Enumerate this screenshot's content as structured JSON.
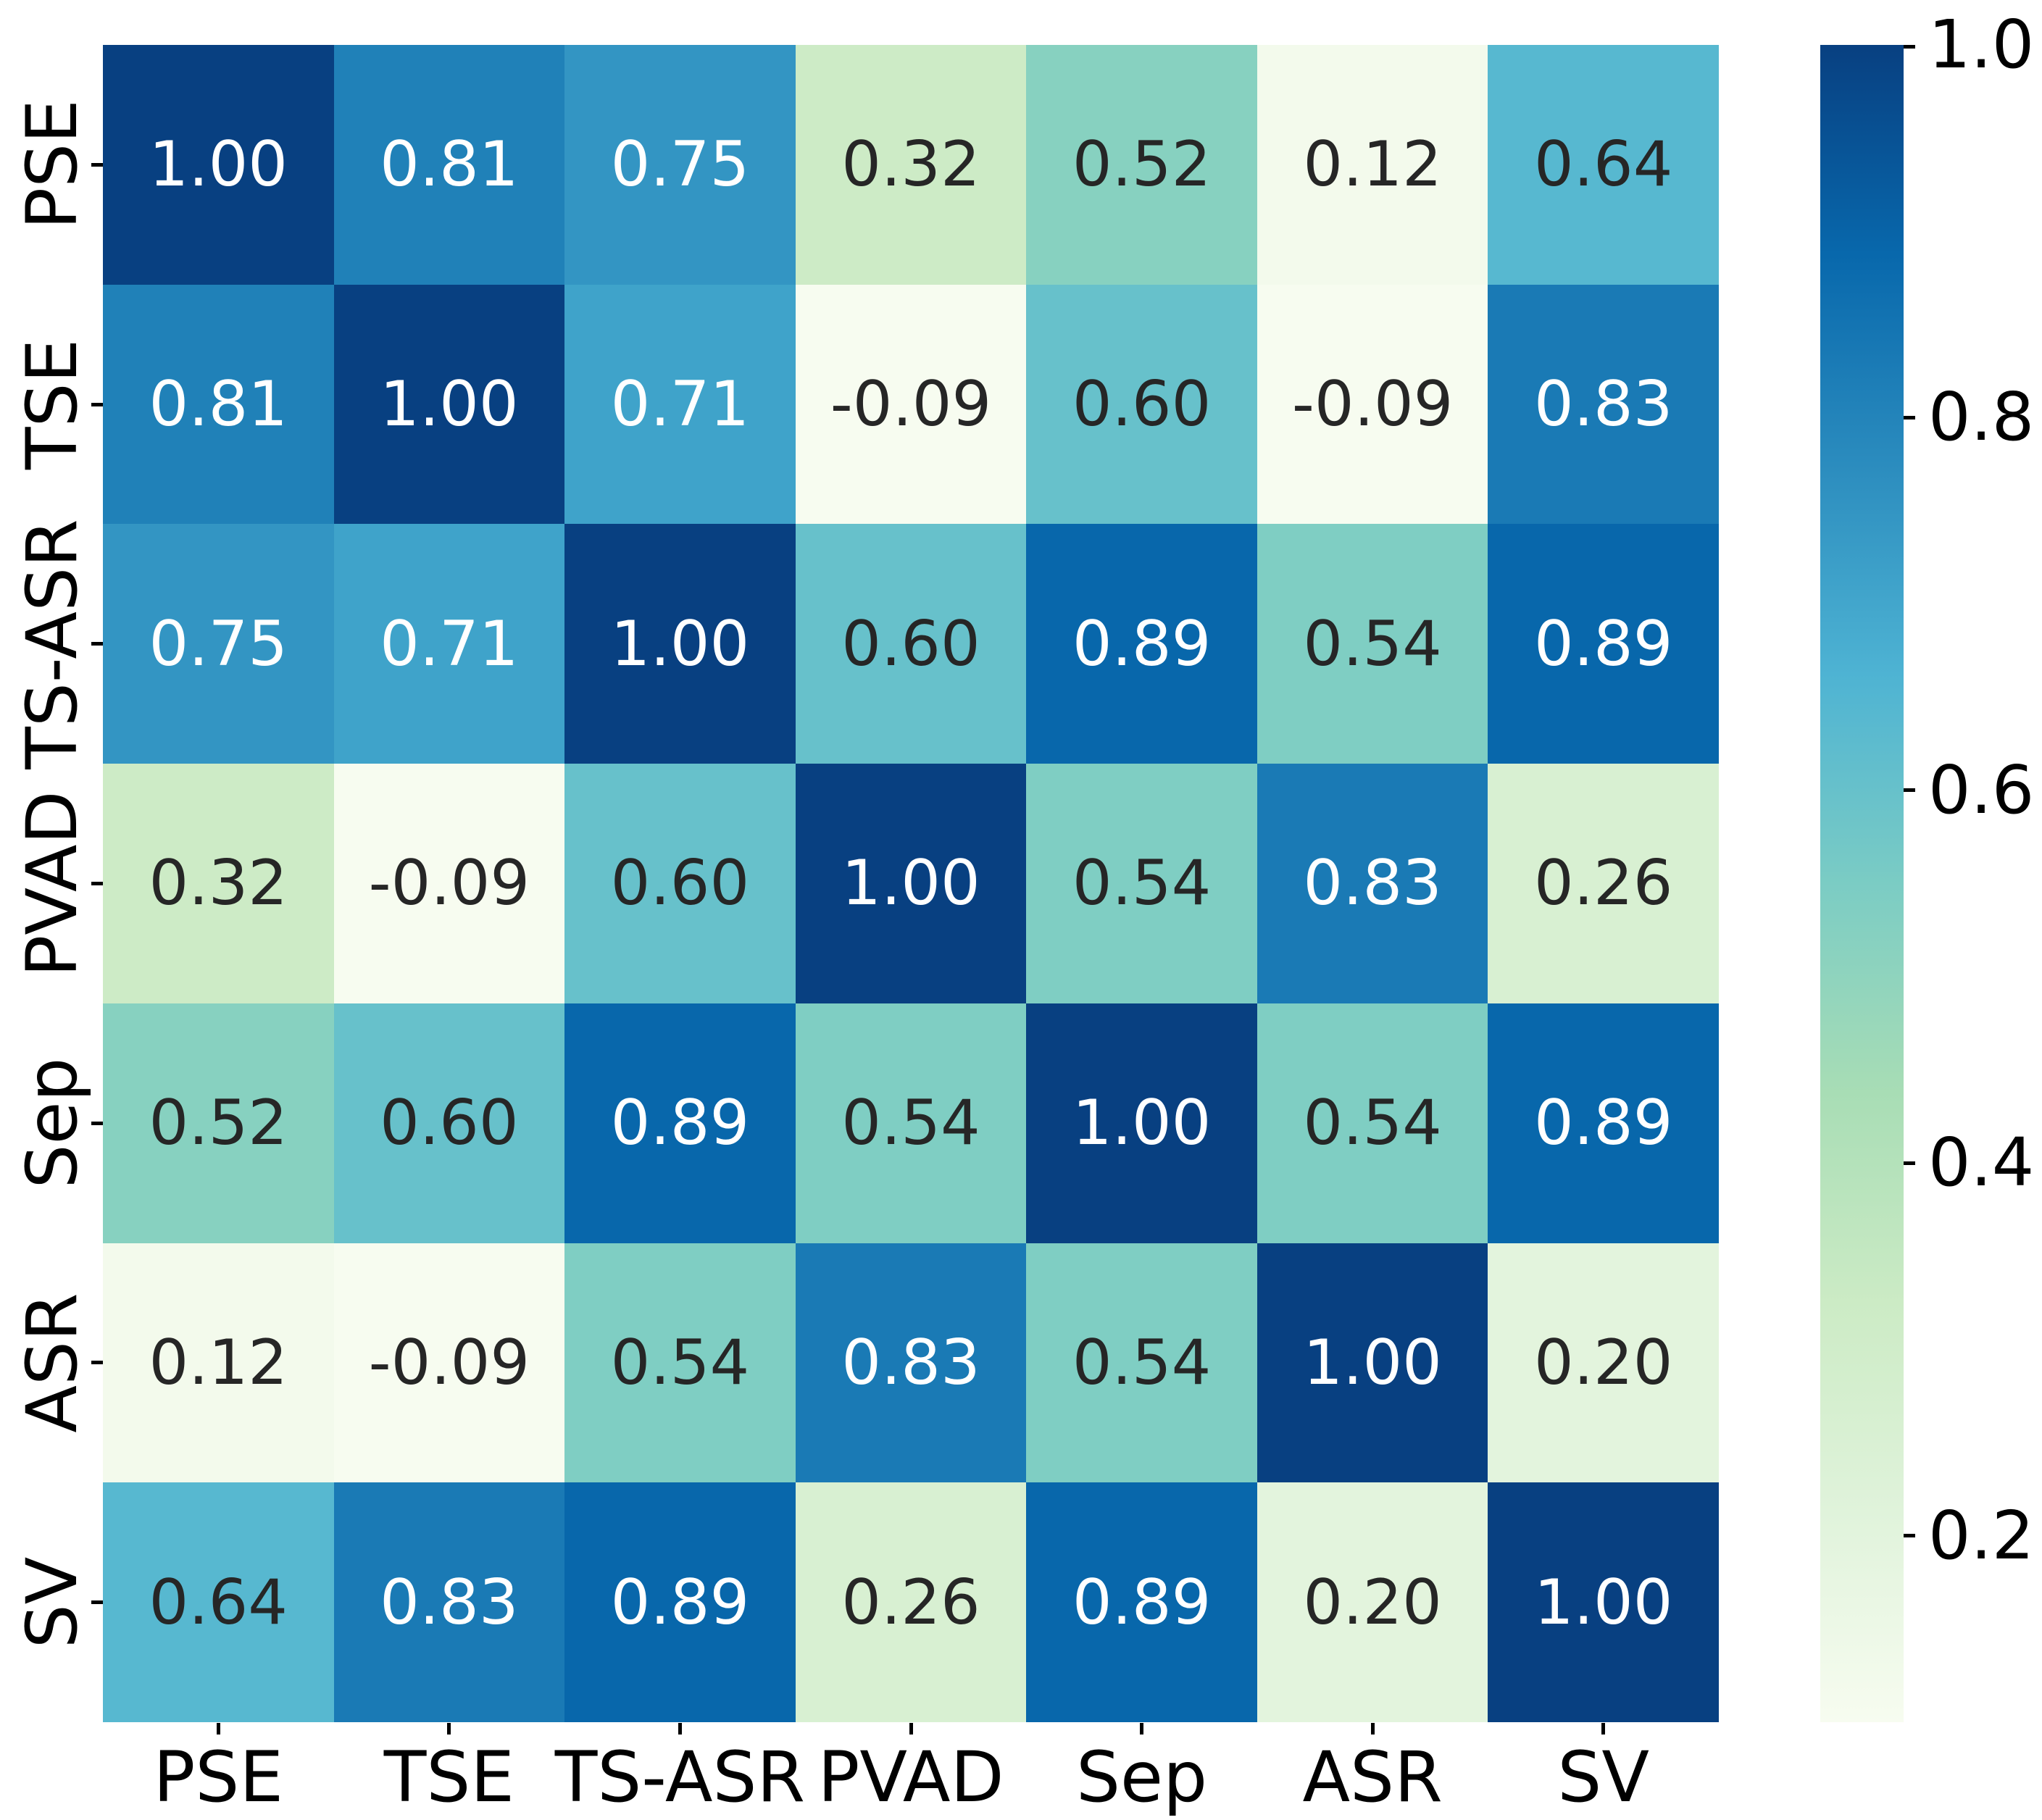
{
  "chart_data": {
    "type": "heatmap",
    "title": "",
    "xlabel": "",
    "ylabel": "",
    "categories": [
      "PSE",
      "TSE",
      "TS-ASR",
      "PVAD",
      "Sep",
      "ASR",
      "SV"
    ],
    "matrix": [
      [
        1.0,
        0.81,
        0.75,
        0.32,
        0.52,
        0.12,
        0.64
      ],
      [
        0.81,
        1.0,
        0.71,
        -0.09,
        0.6,
        -0.09,
        0.83
      ],
      [
        0.75,
        0.71,
        1.0,
        0.6,
        0.89,
        0.54,
        0.89
      ],
      [
        0.32,
        -0.09,
        0.6,
        1.0,
        0.54,
        0.83,
        0.26
      ],
      [
        0.52,
        0.6,
        0.89,
        0.54,
        1.0,
        0.54,
        0.89
      ],
      [
        0.12,
        -0.09,
        0.54,
        0.83,
        0.54,
        1.0,
        0.2
      ],
      [
        0.64,
        0.83,
        0.89,
        0.26,
        0.89,
        0.2,
        1.0
      ]
    ],
    "value_decimals": 2,
    "colormap": {
      "name": "GnBu",
      "stops": [
        "#f7fcf0",
        "#e0f3db",
        "#ccebc5",
        "#a8ddb5",
        "#7bccc4",
        "#4eb3d3",
        "#2b8cbe",
        "#0868ac",
        "#084081"
      ],
      "vmin": 0.1,
      "vmax": 1.0
    },
    "annotation_colors": {
      "dark": "#262626",
      "light": "#ffffff"
    },
    "luminance_threshold": 0.408,
    "colorbar": {
      "tick_labels": [
        "1.0",
        "0.8",
        "0.6",
        "0.4",
        "0.2"
      ],
      "tick_values": [
        1.0,
        0.8,
        0.6,
        0.4,
        0.2
      ],
      "position": "right"
    },
    "grid": false,
    "legend": false
  }
}
